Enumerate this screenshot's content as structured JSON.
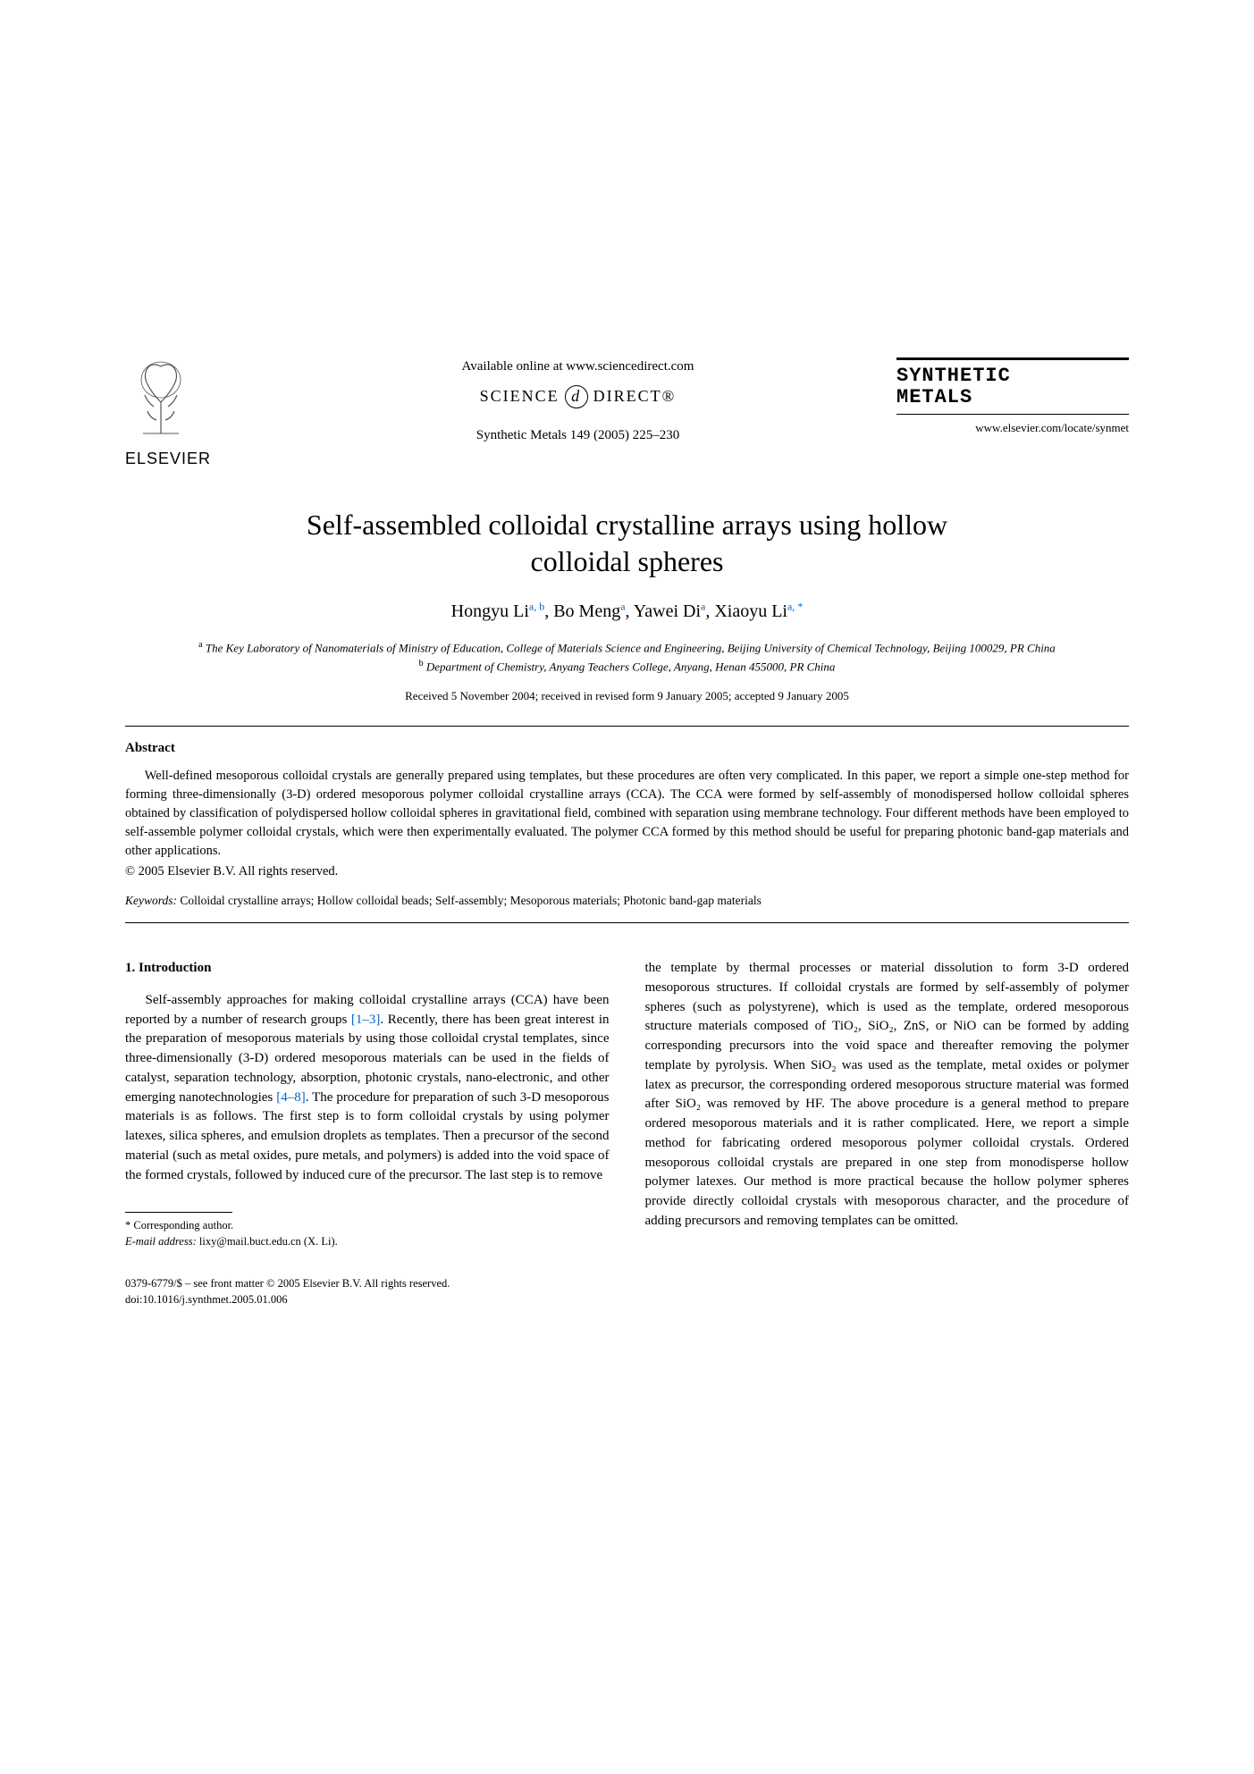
{
  "header": {
    "publisher_name": "ELSEVIER",
    "available_text": "Available online at www.sciencedirect.com",
    "sd_text_left": "SCIENCE",
    "sd_d": "d",
    "sd_text_right": "DIRECT®",
    "citation": "Synthetic Metals 149 (2005) 225–230",
    "journal_name_line1": "SYNTHETIC",
    "journal_name_line2": "METALS",
    "journal_url": "www.elsevier.com/locate/synmet"
  },
  "title": "Self-assembled colloidal crystalline arrays using hollow colloidal spheres",
  "authors_html": "Hongyu Li<sup>a, b</sup>, Bo Meng<sup>a</sup>, Yawei Di<sup>a</sup>, Xiaoyu Li<sup>a, *</sup>",
  "affiliations": {
    "a": "The Key Laboratory of Nanomaterials of Ministry of Education, College of Materials Science and Engineering, Beijing University of Chemical Technology, Beijing 100029, PR China",
    "b": "Department of Chemistry, Anyang Teachers College, Anyang, Henan 455000, PR China"
  },
  "dates": "Received 5 November 2004; received in revised form 9 January 2005; accepted 9 January 2005",
  "abstract": {
    "heading": "Abstract",
    "text": "Well-defined mesoporous colloidal crystals are generally prepared using templates, but these procedures are often very complicated. In this paper, we report a simple one-step method for forming three-dimensionally (3-D) ordered mesoporous polymer colloidal crystalline arrays (CCA). The CCA were formed by self-assembly of monodispersed hollow colloidal spheres obtained by classification of polydispersed hollow colloidal spheres in gravitational field, combined with separation using membrane technology. Four different methods have been employed to self-assemble polymer colloidal crystals, which were then experimentally evaluated. The polymer CCA formed by this method should be useful for preparing photonic band-gap materials and other applications.",
    "copyright": "© 2005 Elsevier B.V. All rights reserved."
  },
  "keywords": {
    "label": "Keywords:",
    "text": " Colloidal crystalline arrays; Hollow colloidal beads; Self-assembly; Mesoporous materials; Photonic band-gap materials"
  },
  "section1": {
    "heading": "1. Introduction",
    "col1_part1": "Self-assembly approaches for making colloidal crystalline arrays (CCA) have been reported by a number of research groups ",
    "ref1": "[1–3]",
    "col1_part2": ". Recently, there has been great interest in the preparation of mesoporous materials by using those colloidal crystal templates, since three-dimensionally (3-D) ordered mesoporous materials can be used in the fields of catalyst, separation technology, absorption, photonic crystals, nano-electronic, and other emerging nanotechnologies ",
    "ref2": "[4–8]",
    "col1_part3": ". The procedure for preparation of such 3-D mesoporous materials is as follows. The first step is to form colloidal crystals by using polymer latexes, silica spheres, and emulsion droplets as templates. Then a precursor of the second material (such as metal oxides, pure metals, and polymers) is added into the void space of the formed crystals, followed by induced cure of the precursor. The last step is to remove",
    "col2": "the template by thermal processes or material dissolution to form 3-D ordered mesoporous structures. If colloidal crystals are formed by self-assembly of polymer spheres (such as polystyrene), which is used as the template, ordered mesoporous structure materials composed of TiO₂, SiO₂, ZnS, or NiO can be formed by adding corresponding precursors into the void space and thereafter removing the polymer template by pyrolysis. When SiO₂ was used as the template, metal oxides or polymer latex as precursor, the corresponding ordered mesoporous structure material was formed after SiO₂ was removed by HF. The above procedure is a general method to prepare ordered mesoporous materials and it is rather complicated. Here, we report a simple method for fabricating ordered mesoporous polymer colloidal crystals. Ordered mesoporous colloidal crystals are prepared in one step from monodisperse hollow polymer latexes. Our method is more practical because the hollow polymer spheres provide directly colloidal crystals with mesoporous character, and the procedure of adding precursors and removing templates can be omitted."
  },
  "footnote": {
    "marker": "*",
    "corresponding": " Corresponding author.",
    "email_label": "E-mail address:",
    "email": " lixy@mail.buct.edu.cn (X. Li)."
  },
  "bottom": {
    "line1": "0379-6779/$ – see front matter © 2005 Elsevier B.V. All rights reserved.",
    "line2": "doi:10.1016/j.synthmet.2005.01.006"
  },
  "colors": {
    "link": "#0066cc",
    "text": "#000000",
    "background": "#ffffff"
  }
}
